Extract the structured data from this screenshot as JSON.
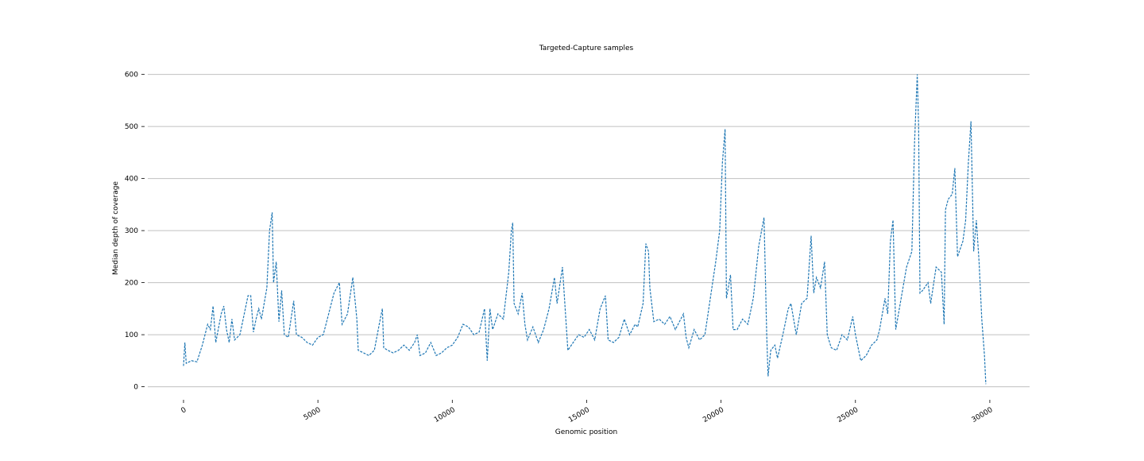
{
  "chart_data": {
    "type": "line",
    "title": "Targeted-Capture samples",
    "x_label": "Genomic position",
    "y_label": "Median depth of coverage",
    "xlim": [
      -1330,
      31480
    ],
    "ylim": [
      -22,
      630
    ],
    "xticks": [
      0,
      5000,
      10000,
      15000,
      20000,
      25000,
      30000
    ],
    "yticks": [
      0,
      100,
      200,
      300,
      400,
      500,
      600
    ],
    "grid": true,
    "line_style": "dashed",
    "series": [
      {
        "name": "Targeted-Capture samples",
        "color": "#1f77b4",
        "x": [
          0,
          50,
          100,
          300,
          500,
          700,
          900,
          1000,
          1100,
          1200,
          1400,
          1500,
          1600,
          1700,
          1800,
          1900,
          2100,
          2300,
          2400,
          2500,
          2600,
          2700,
          2800,
          2900,
          3000,
          3100,
          3200,
          3300,
          3350,
          3450,
          3550,
          3650,
          3750,
          3900,
          4000,
          4100,
          4200,
          4400,
          4600,
          4800,
          5000,
          5200,
          5400,
          5600,
          5800,
          5900,
          6100,
          6300,
          6450,
          6500,
          6700,
          6900,
          7100,
          7300,
          7400,
          7450,
          7600,
          7800,
          8000,
          8200,
          8400,
          8600,
          8700,
          8800,
          9000,
          9200,
          9400,
          9600,
          9800,
          10000,
          10200,
          10400,
          10600,
          10800,
          11000,
          11200,
          11300,
          11400,
          11500,
          11700,
          11900,
          12100,
          12200,
          12250,
          12300,
          12450,
          12600,
          12700,
          12800,
          13000,
          13200,
          13400,
          13600,
          13800,
          13900,
          14100,
          14200,
          14300,
          14500,
          14700,
          14900,
          15100,
          15300,
          15500,
          15700,
          15800,
          16000,
          16200,
          16400,
          16600,
          16800,
          16900,
          17100,
          17200,
          17300,
          17350,
          17500,
          17700,
          17900,
          18100,
          18300,
          18500,
          18600,
          18700,
          18800,
          19000,
          19200,
          19400,
          19600,
          19800,
          19950,
          20050,
          20150,
          20200,
          20350,
          20450,
          20600,
          20800,
          21000,
          21200,
          21400,
          21600,
          21700,
          21750,
          21850,
          22000,
          22100,
          22300,
          22500,
          22600,
          22800,
          23000,
          23200,
          23350,
          23450,
          23550,
          23700,
          23850,
          23950,
          24100,
          24300,
          24500,
          24700,
          24900,
          25000,
          25200,
          25400,
          25600,
          25800,
          25900,
          26100,
          26200,
          26300,
          26400,
          26500,
          26700,
          26900,
          27100,
          27200,
          27300,
          27350,
          27400,
          27500,
          27700,
          27800,
          28000,
          28200,
          28300,
          28350,
          28450,
          28600,
          28700,
          28800,
          29000,
          29100,
          29200,
          29300,
          29400,
          29500,
          29600,
          29700,
          29800,
          29850
        ],
        "values": [
          40,
          85,
          45,
          50,
          48,
          80,
          120,
          110,
          155,
          85,
          140,
          155,
          110,
          85,
          130,
          90,
          100,
          150,
          175,
          175,
          105,
          130,
          150,
          130,
          160,
          190,
          300,
          335,
          200,
          240,
          125,
          185,
          100,
          95,
          130,
          165,
          100,
          95,
          85,
          80,
          95,
          100,
          140,
          180,
          200,
          120,
          140,
          210,
          130,
          70,
          65,
          60,
          70,
          125,
          150,
          75,
          70,
          65,
          70,
          80,
          70,
          85,
          100,
          60,
          65,
          85,
          60,
          65,
          75,
          80,
          95,
          120,
          115,
          100,
          105,
          150,
          50,
          150,
          110,
          140,
          130,
          220,
          300,
          315,
          160,
          140,
          180,
          120,
          90,
          115,
          85,
          110,
          150,
          210,
          160,
          230,
          150,
          70,
          85,
          100,
          95,
          110,
          90,
          150,
          175,
          90,
          85,
          95,
          130,
          100,
          120,
          115,
          160,
          275,
          260,
          190,
          125,
          130,
          120,
          135,
          110,
          130,
          140,
          95,
          75,
          110,
          90,
          100,
          170,
          240,
          300,
          430,
          495,
          170,
          215,
          110,
          110,
          130,
          120,
          170,
          270,
          325,
          100,
          20,
          70,
          80,
          55,
          100,
          150,
          160,
          100,
          160,
          170,
          290,
          180,
          210,
          190,
          240,
          100,
          75,
          70,
          100,
          90,
          135,
          100,
          50,
          60,
          80,
          90,
          110,
          170,
          140,
          280,
          320,
          110,
          170,
          230,
          260,
          470,
          600,
          500,
          180,
          185,
          200,
          160,
          230,
          220,
          120,
          340,
          360,
          370,
          420,
          250,
          280,
          320,
          430,
          510,
          260,
          320,
          240,
          130,
          60,
          5
        ]
      }
    ]
  }
}
